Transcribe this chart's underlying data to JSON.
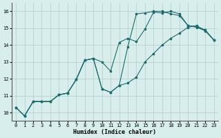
{
  "xlabel": "Humidex (Indice chaleur)",
  "xlim": [
    -0.5,
    23.5
  ],
  "ylim": [
    9.5,
    16.5
  ],
  "xticks": [
    0,
    1,
    2,
    3,
    4,
    5,
    6,
    7,
    8,
    9,
    10,
    11,
    12,
    13,
    14,
    15,
    16,
    17,
    18,
    19,
    20,
    21,
    22,
    23
  ],
  "yticks": [
    10,
    11,
    12,
    13,
    14,
    15,
    16
  ],
  "bg_color": "#d8eeed",
  "line_color": "#1a6b6b",
  "grid_color": "#b0cccc",
  "line1": {
    "x": [
      0,
      1,
      2,
      3,
      4,
      5,
      6,
      7,
      8,
      9,
      10,
      11,
      12,
      13,
      14,
      15,
      16,
      17,
      18,
      19,
      20,
      21,
      22,
      23
    ],
    "y": [
      10.3,
      9.8,
      10.65,
      10.65,
      10.65,
      11.05,
      11.15,
      11.95,
      13.1,
      13.2,
      11.4,
      11.2,
      11.6,
      13.9,
      15.85,
      15.9,
      16.0,
      16.0,
      15.85,
      15.75,
      15.15,
      15.1,
      14.9,
      14.3
    ]
  },
  "line2": {
    "x": [
      0,
      1,
      2,
      3,
      4,
      5,
      6,
      7,
      8,
      9,
      10,
      11,
      12,
      13,
      14,
      15,
      16,
      17,
      18,
      19,
      20,
      21,
      22,
      23
    ],
    "y": [
      10.3,
      9.8,
      10.65,
      10.65,
      10.65,
      11.05,
      11.15,
      11.95,
      13.1,
      13.2,
      13.0,
      12.45,
      14.15,
      14.4,
      14.2,
      14.95,
      15.95,
      15.9,
      16.0,
      15.85,
      15.15,
      15.05,
      14.85,
      14.3
    ]
  },
  "line3": {
    "x": [
      0,
      1,
      2,
      3,
      4,
      5,
      6,
      7,
      8,
      9,
      10,
      11,
      12,
      13,
      14,
      15,
      16,
      17,
      18,
      19,
      20,
      21,
      22,
      23
    ],
    "y": [
      10.3,
      9.8,
      10.65,
      10.65,
      10.65,
      11.05,
      11.15,
      11.95,
      13.1,
      13.2,
      11.4,
      11.2,
      11.6,
      11.75,
      12.1,
      13.0,
      13.5,
      14.0,
      14.4,
      14.7,
      15.05,
      15.15,
      14.85,
      14.3
    ]
  }
}
